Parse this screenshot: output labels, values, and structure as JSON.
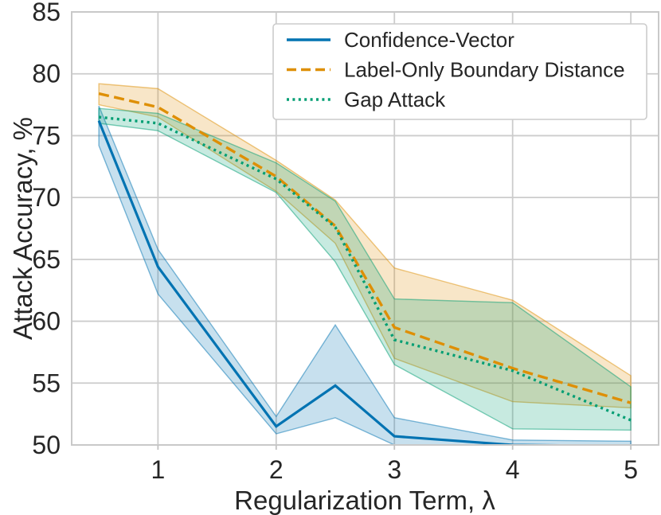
{
  "figure": {
    "background": "#ffffff",
    "text_color": "#262626",
    "grid_color": "#cccccc",
    "spine_color": "#c9c9c9",
    "tick_mark_color": "#c2c2c2",
    "legend_border_color": "#cccccc",
    "legend_background": "#ffffff"
  },
  "chart_data": {
    "type": "line",
    "title": "",
    "xlabel": "Regularization Term, λ",
    "ylabel": "Attack Accuracy, %",
    "xlim": [
      0.27,
      5.235
    ],
    "ylim": [
      50,
      85
    ],
    "xticks": [
      1,
      2,
      3,
      4,
      5
    ],
    "yticks": [
      50,
      55,
      60,
      65,
      70,
      75,
      80,
      85
    ],
    "grid": true,
    "legend_position": "upper right",
    "x": [
      0.5,
      1,
      2,
      2.5,
      3,
      4,
      5
    ],
    "series": [
      {
        "name": "Confidence-Vector",
        "color": "#0173b2",
        "style": "solid",
        "values": [
          76.2,
          64.4,
          51.5,
          54.8,
          50.7,
          50.0,
          49.9
        ],
        "band_low": [
          74.2,
          62.2,
          50.9,
          52.2,
          50.0,
          49.3,
          49.4
        ],
        "band_high": [
          77.4,
          65.8,
          52.3,
          59.7,
          52.2,
          50.4,
          50.3
        ]
      },
      {
        "name": "Label-Only Boundary Distance",
        "color": "#de8f05",
        "style": "dashed",
        "values": [
          78.4,
          77.3,
          71.7,
          67.7,
          59.5,
          56.2,
          53.4
        ],
        "band_low": [
          77.5,
          76.5,
          70.5,
          66.3,
          57.0,
          53.5,
          53.0
        ],
        "band_high": [
          79.2,
          78.8,
          73.0,
          69.8,
          64.3,
          61.7,
          55.6
        ]
      },
      {
        "name": "Gap Attack",
        "color": "#029e73",
        "style": "dotted",
        "values": [
          76.5,
          76.0,
          71.5,
          67.6,
          58.5,
          56.0,
          52.0
        ],
        "band_low": [
          76.0,
          75.4,
          70.4,
          64.8,
          56.5,
          51.3,
          51.2
        ],
        "band_high": [
          77.2,
          76.8,
          72.8,
          69.7,
          61.8,
          61.5,
          54.7
        ]
      }
    ]
  },
  "legend": {
    "items": [
      "Confidence-Vector",
      "Label-Only Boundary Distance",
      "Gap Attack"
    ]
  }
}
